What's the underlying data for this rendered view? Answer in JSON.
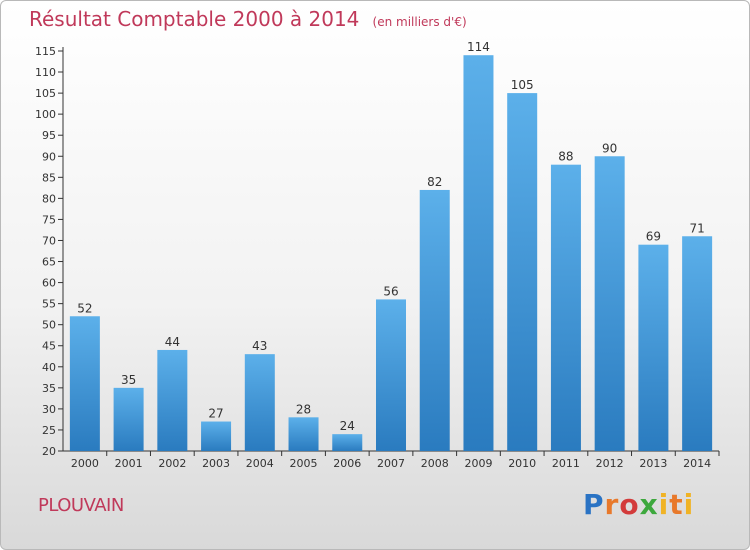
{
  "header": {
    "title": "Résultat Comptable 2000 à 2014",
    "unit": "(en milliers d'€)"
  },
  "footer": {
    "commune": "PLOUVAIN",
    "logo_parts": [
      "P",
      "r",
      "o",
      "x",
      "i",
      "t",
      "i"
    ]
  },
  "colors": {
    "accent": "#c0395a",
    "bar_top": "#5cb0ea",
    "bar_bottom": "#2a7bbf"
  },
  "chart_data": {
    "type": "bar",
    "categories": [
      "2000",
      "2001",
      "2002",
      "2003",
      "2004",
      "2005",
      "2006",
      "2007",
      "2008",
      "2009",
      "2010",
      "2011",
      "2012",
      "2013",
      "2014"
    ],
    "values": [
      52,
      35,
      44,
      27,
      43,
      28,
      24,
      56,
      82,
      114,
      105,
      88,
      90,
      69,
      71
    ],
    "title": "Résultat Comptable 2000 à 2014",
    "xlabel": "",
    "ylabel": "",
    "ylim": [
      20,
      115
    ],
    "yticks": [
      20,
      25,
      30,
      35,
      40,
      45,
      50,
      55,
      60,
      65,
      70,
      75,
      80,
      85,
      90,
      95,
      100,
      105,
      110,
      115
    ],
    "grid": false,
    "legend": "none"
  }
}
